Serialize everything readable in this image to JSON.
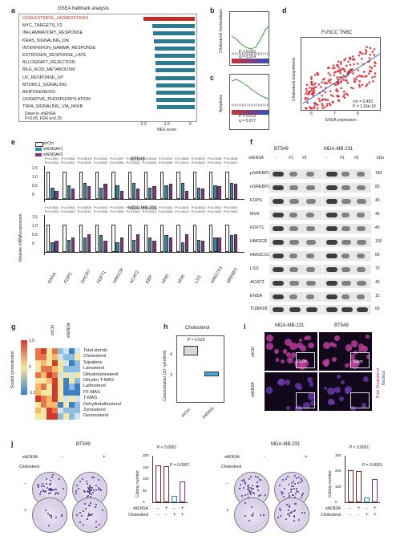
{
  "panels": {
    "a": "a",
    "b": "b",
    "c": "c",
    "d": "d",
    "e": "e",
    "f": "f",
    "g": "g",
    "h": "h",
    "i": "i",
    "j": "j"
  },
  "panel_a": {
    "title": "GSEA hallmark analysis",
    "pathways": [
      "CHOLESTEROL_HOMEOSTASIS",
      "MYC_TARGETS_V2",
      "INFLAMMATORY_RESPONSE",
      "KRAS_SIGNALING_DN",
      "INTERFERON_GAMMA_RESPONSE",
      "ESTROGEN_RESPONSE_LATE",
      "ALLOGRAFT_REJECTION",
      "BILE_ACID_METABOLISM",
      "UV_RESPONSE_UP",
      "MTORC1_SIGNALING",
      "ADIPOGENESIS",
      "OXIDATIVE_PHOSPHORYLATION",
      "TNFA_SIGNALING_VIA_NFKB"
    ],
    "nes": [
      -1.95,
      -1.62,
      -1.58,
      -1.55,
      -1.53,
      -1.52,
      -1.5,
      -1.49,
      -1.47,
      -1.46,
      -1.45,
      -1.44,
      -1.43
    ],
    "highlight_color": "#c0302b",
    "bar_color": "#2b7c91",
    "note1": "Down in shENSA",
    "note2": "P<0.05, FDR q<0.25",
    "xticks": [
      "-2.0",
      "-1.0",
      "0"
    ],
    "xlabel": "NES score"
  },
  "panel_b": {
    "ylabel": "Cholesterol homeostasis",
    "p": "P < 0.001",
    "q": "q = 0.014"
  },
  "panel_c": {
    "ylabel": "Apoptosis",
    "p": "P = 0.012",
    "q": "q = 0.077"
  },
  "panel_d": {
    "title": "FUSCC TNBC",
    "ylabel": "Cholesterol biosynthesis",
    "xlabel": "ENSA expression",
    "xticks": [
      "6",
      "7",
      "8"
    ],
    "cor": "cor = 0.453",
    "p": "P = 1.16e-19",
    "point_color": "#e0202a",
    "line_color": "#3a5fa8"
  },
  "panel_e": {
    "legend": [
      "shCtrl",
      "shENSA#1",
      "shENSA#2"
    ],
    "colors": [
      "#ffffff",
      "#2a8c9e",
      "#8c2c8c"
    ],
    "cell1": "BT549",
    "cell2": "MDA-MB-231",
    "ylabel": "Relative mRNA expression",
    "yticks": [
      "1.5",
      "1.0",
      "0.5",
      "0"
    ],
    "genes": [
      "ENSA",
      "FDPS",
      "DHCR7",
      "FDFT1",
      "HMGCR",
      "ACAT2",
      "EBP",
      "MVD",
      "MVK",
      "LSS",
      "HMGCS1",
      "SREBF2"
    ],
    "pvals_bt549_1": [
      "P<0.0001",
      "P=0.0004",
      "P=0.0018",
      "P=0.0001",
      "P=0.0007",
      "P=0.0007",
      "P=0.0024",
      "P=0.0011",
      "P=0.0006",
      "P=0.0002",
      "P=0.0006",
      "P=0.0035"
    ],
    "pvals_bt549_2": [
      "P<0.0001",
      "P=0.0001",
      "P=0.0026",
      "P=0.0002",
      "P=0.0004",
      "P=0.0012",
      "P=0.0003",
      "P=0.0009",
      "P=0.0011",
      "P=0.0002",
      "P=0.0015",
      "P=0.0021"
    ],
    "pvals_mda_1": [
      "P<0.0001",
      "P=0.0001",
      "P=0.0009",
      "P=0.0002",
      "P=0.0005",
      "P=0.0003",
      "P=0.0019",
      "P=0.0002",
      "P=0.0014",
      "P=0.0003",
      "P=0.0001",
      "P<0.0001"
    ],
    "pvals_mda_2": [
      "P<0.0001",
      "P<0.0001",
      "P=0.0011",
      "P=0.0006",
      "P=0.0009",
      "P=0.0002",
      "P=0.0013",
      "P=0.0004",
      "P=0.0012",
      "P=0.0003",
      "P=0.0002",
      "P<0.0001"
    ]
  },
  "panel_f": {
    "cell1": "BT549",
    "cell2": "MDA-MB-231",
    "shensa": "shENSA",
    "lanes": [
      "-",
      "#1",
      "#2",
      "-",
      "#1",
      "#2"
    ],
    "kda": "kDa",
    "rows": [
      {
        "name": "pSREBP2",
        "marker": "140"
      },
      {
        "name": "nSREBP2",
        "marker": "80"
      },
      {
        "name": "FDPS",
        "marker": "45"
      },
      {
        "name": "MVK",
        "marker": "45"
      },
      {
        "name": "FDFT1",
        "marker": "45"
      },
      {
        "name": "HMGCR",
        "marker": "100"
      },
      {
        "name": "HMGCS1",
        "marker": "60"
      },
      {
        "name": "LSS",
        "marker": "75"
      },
      {
        "name": "ACAT2",
        "marker": "45"
      },
      {
        "name": "ENSA",
        "marker": "15"
      },
      {
        "name": "TUBA1B",
        "marker": "60"
      }
    ],
    "extra_markers": [
      "60",
      "45",
      "45"
    ]
  },
  "panel_g": {
    "col1": "shCtrl",
    "col2": "shENSA",
    "scale_label": "Scaled concentration",
    "scale_ticks": [
      "1.5",
      "0",
      "-1.5"
    ],
    "metabolites": [
      "Total sterols",
      "Cholesterol",
      "Squalene",
      "Lanosterol",
      "Dihydrolanosterol",
      "Dihydro T-MAS",
      "Lathosterol",
      "FF-MAS",
      "T-MAS",
      "Dehydrolathosterol",
      "Zymosterol",
      "Desmosterol"
    ]
  },
  "panel_h": {
    "title": "Cholesterol",
    "p": "P = 0.029",
    "ylabel": "Concentration (10⁻³μmol/ml)",
    "yticks": [
      "3",
      "4"
    ],
    "groups": [
      "shCtrl",
      "shENSA"
    ]
  },
  "panel_i": {
    "cell1": "MDA-MB-231",
    "cell2": "BT549",
    "row1": "shCtrl",
    "row2": "shENSA",
    "scale1": "75μm",
    "scale2": "50μm",
    "legend1": "Free Cholesterol",
    "legend2": "Nucleus"
  },
  "panel_j": {
    "cell1": "BT549",
    "cell2": "MDA-MB-231",
    "shensa_label": "shENSA",
    "chol_label": "Cholesterol",
    "minus": "-",
    "plus": "+",
    "ylabel": "Colony number",
    "left_p1": "P < 0.0001",
    "left_p2": "P = 0.0007",
    "right_p1": "P < 0.0001",
    "right_p2": "P = 0.0003",
    "left_yticks": [
      "200",
      "150",
      "100",
      "50",
      "0"
    ],
    "right_yticks": [
      "300",
      "200",
      "100",
      "0"
    ],
    "left_values": [
      158,
      155,
      28,
      90
    ],
    "right_values": [
      205,
      200,
      30,
      150
    ],
    "xrow1": [
      "-",
      "+",
      "-",
      "+"
    ],
    "xrow2": [
      "-",
      "-",
      "+",
      "+"
    ]
  }
}
